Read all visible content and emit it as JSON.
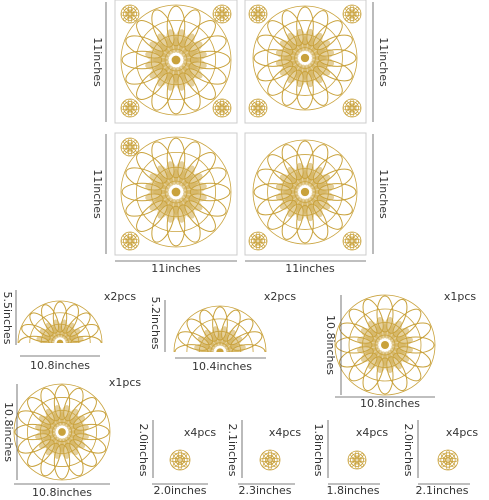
{
  "sheets": {
    "row1_left_height": "11inches",
    "row1_right_height": "11inches",
    "row2_left_height": "11inches",
    "row2_right_height": "11inches",
    "left_width": "11inches",
    "right_width": "11inches"
  },
  "pieces": [
    {
      "quantity": "x2pcs",
      "height": "5.5inches",
      "width": "10.8inches"
    },
    {
      "quantity": "x2pcs",
      "height": "5.2inches",
      "width": "10.4inches"
    },
    {
      "quantity": "x1pcs",
      "height": "10.8inches",
      "width": "10.8inches"
    },
    {
      "quantity": "x1pcs",
      "height": "10.8inches",
      "width": "10.8inches"
    },
    {
      "quantity": "x4pcs",
      "height": "2.0inches",
      "width": "2.0inches"
    },
    {
      "quantity": "x4pcs",
      "height": "2.1inches",
      "width": "2.3inches"
    },
    {
      "quantity": "x4pcs",
      "height": "1.8inches",
      "width": "1.8inches"
    },
    {
      "quantity": "x4pcs",
      "height": "2.0inches",
      "width": "2.1inches"
    }
  ]
}
